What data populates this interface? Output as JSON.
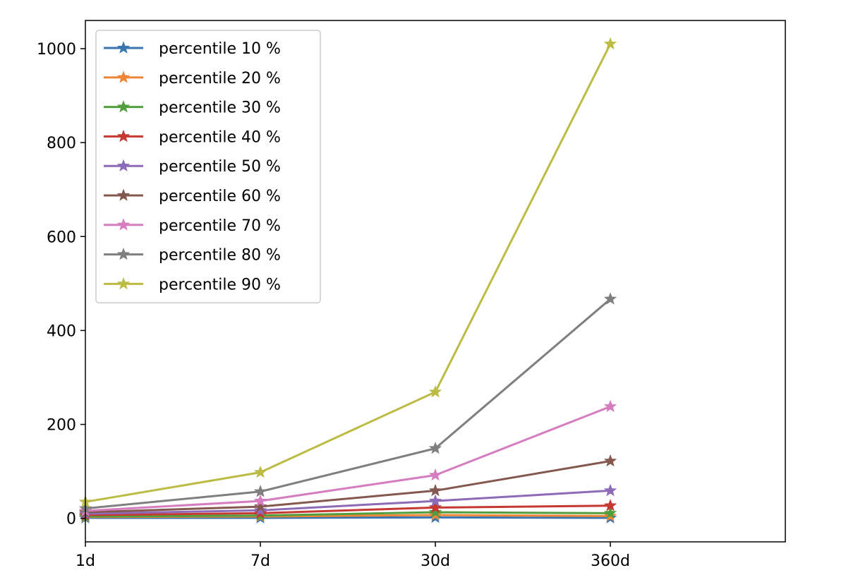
{
  "chart_data": {
    "type": "line",
    "title": "",
    "xlabel": "",
    "ylabel": "",
    "categories": [
      "1d",
      "7d",
      "30d",
      "360d"
    ],
    "xlim": [
      0,
      4
    ],
    "ylim": [
      -50,
      1060
    ],
    "yticks": [
      0,
      200,
      400,
      600,
      800,
      1000
    ],
    "grid": false,
    "legend_position": "upper-left",
    "marker": "star",
    "series": [
      {
        "name": "percentile 10 %",
        "color": "#3a75b0",
        "values": [
          1,
          1,
          2,
          1
        ]
      },
      {
        "name": "percentile 20 %",
        "color": "#ef8636",
        "values": [
          3,
          4,
          7,
          5
        ]
      },
      {
        "name": "percentile 30 %",
        "color": "#519e3e",
        "values": [
          4,
          6,
          13,
          11
        ]
      },
      {
        "name": "percentile 40 %",
        "color": "#c53932",
        "values": [
          7,
          11,
          23,
          27
        ]
      },
      {
        "name": "percentile 50 %",
        "color": "#8d6bb8",
        "values": [
          10,
          17,
          37,
          59
        ]
      },
      {
        "name": "percentile 60 %",
        "color": "#84584e",
        "values": [
          13,
          25,
          59,
          122
        ]
      },
      {
        "name": "percentile 70 %",
        "color": "#d57dbf",
        "values": [
          16,
          37,
          92,
          238
        ]
      },
      {
        "name": "percentile 80 %",
        "color": "#7f7f7f",
        "values": [
          21,
          57,
          149,
          467
        ]
      },
      {
        "name": "percentile 90 %",
        "color": "#bcbc45",
        "values": [
          35,
          98,
          269,
          1010
        ]
      }
    ]
  }
}
